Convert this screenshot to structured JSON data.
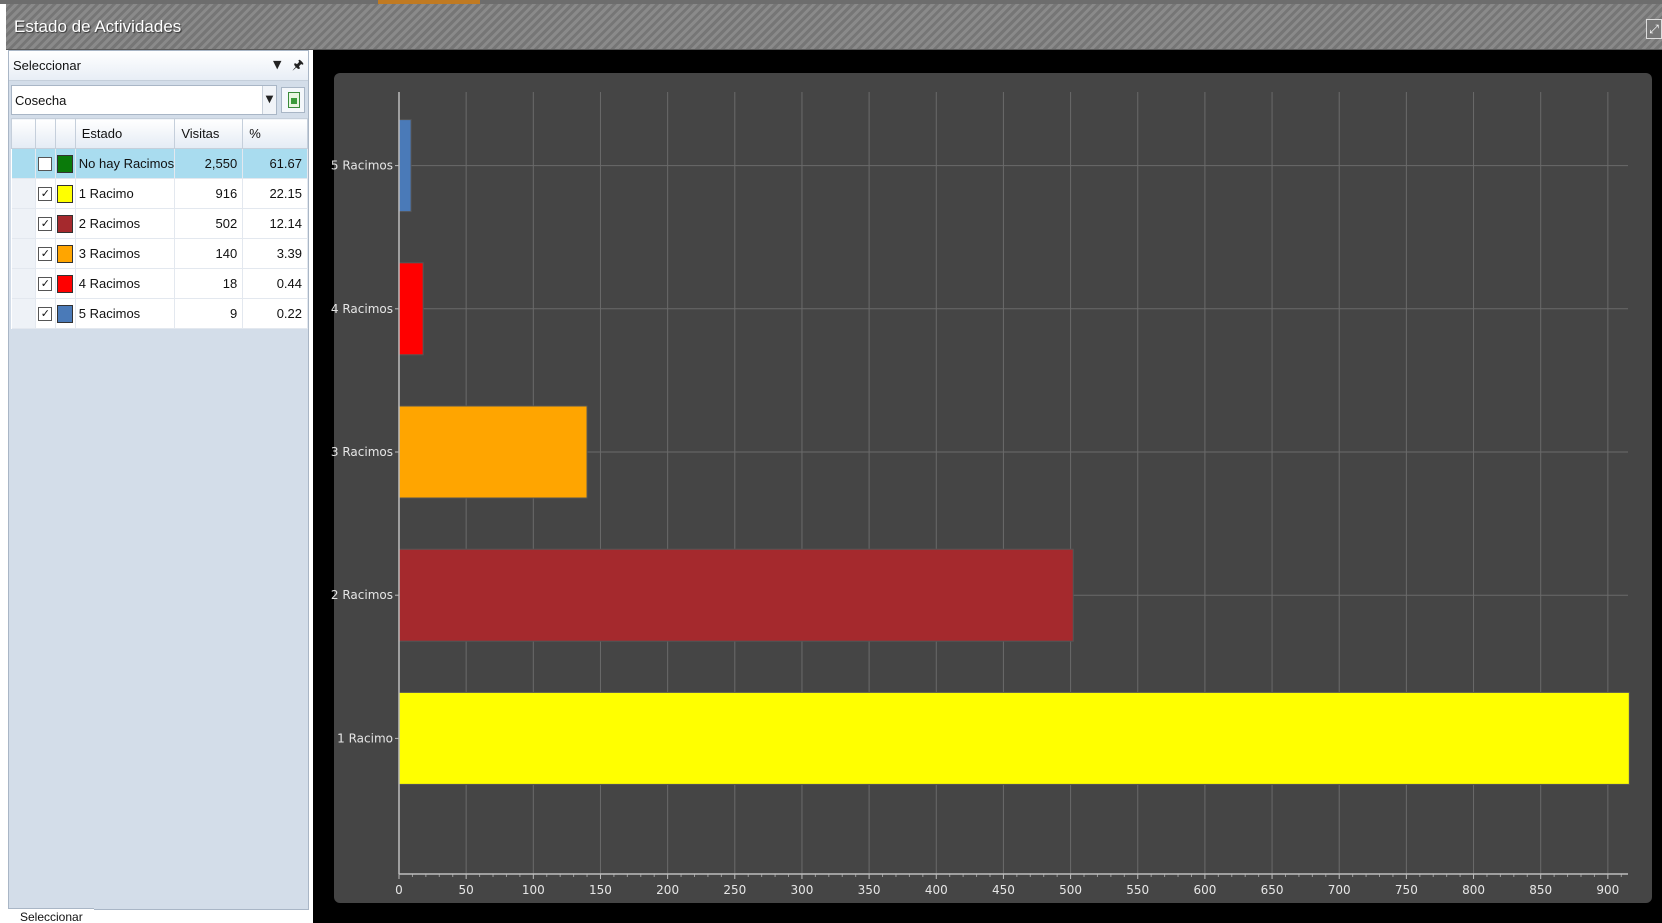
{
  "window": {
    "title": "Estado de Actividades",
    "maximize_icon": "maximize-icon"
  },
  "panel": {
    "header_label": "Seleccionar",
    "combo_value": "Cosecha",
    "bottom_tab": "Seleccionar",
    "columns": [
      "Estado",
      "Visitas",
      "%"
    ],
    "rows": [
      {
        "name": "No hay Racimos",
        "visits": "2,550",
        "pct": "61.67",
        "checked": false,
        "color": "#0a7a0a",
        "selected": true
      },
      {
        "name": "1 Racimo",
        "visits": "916",
        "pct": "22.15",
        "checked": true,
        "color": "#ffff00",
        "selected": false
      },
      {
        "name": "2 Racimos",
        "visits": "502",
        "pct": "12.14",
        "checked": true,
        "color": "#a5292d",
        "selected": false
      },
      {
        "name": "3 Racimos",
        "visits": "140",
        "pct": "3.39",
        "checked": true,
        "color": "#ffa500",
        "selected": false
      },
      {
        "name": "4 Racimos",
        "visits": "18",
        "pct": "0.44",
        "checked": true,
        "color": "#ff0000",
        "selected": false
      },
      {
        "name": "5 Racimos",
        "visits": "9",
        "pct": "0.22",
        "checked": true,
        "color": "#4a7ab8",
        "selected": false
      }
    ]
  },
  "chart_data": {
    "type": "bar",
    "orientation": "horizontal",
    "categories": [
      "1 Racimo",
      "2 Racimos",
      "3 Racimos",
      "4 Racimos",
      "5 Racimos"
    ],
    "values": [
      916,
      502,
      140,
      18,
      9
    ],
    "colors": [
      "#ffff00",
      "#a5292d",
      "#ffa500",
      "#ff0000",
      "#4a7ab8"
    ],
    "xlim": [
      0,
      915
    ],
    "xticks": [
      0,
      50,
      100,
      150,
      200,
      250,
      300,
      350,
      400,
      450,
      500,
      550,
      600,
      650,
      700,
      750,
      800,
      850,
      900
    ],
    "grid": true,
    "title": "",
    "xlabel": "",
    "ylabel": ""
  }
}
